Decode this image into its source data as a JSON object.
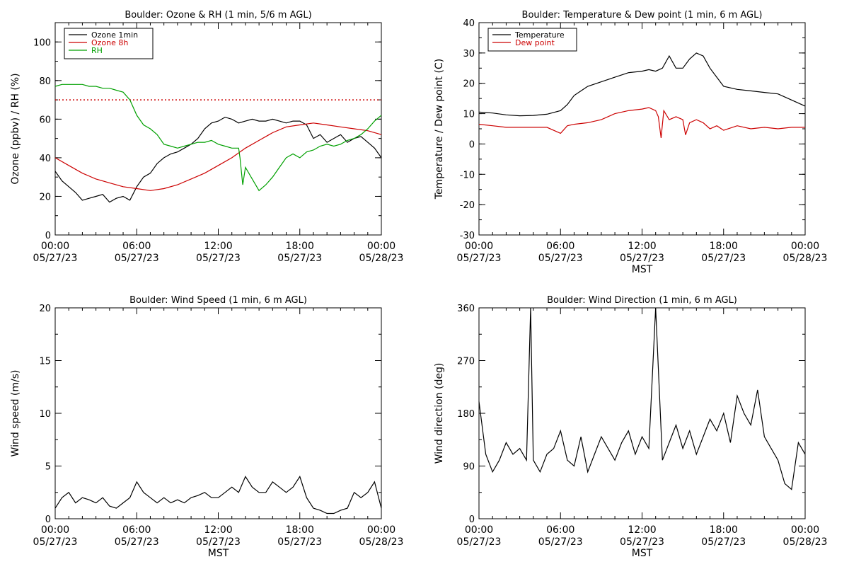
{
  "chart_data": [
    {
      "type": "line",
      "title": "Boulder: Ozone & RH (1 min, 5/6 m AGL)",
      "ylabel": "Ozone (ppbv) / RH (%)",
      "xlabel": "",
      "ylim": [
        0,
        110
      ],
      "yticks": [
        0,
        20,
        40,
        60,
        80,
        100
      ],
      "x_tick_labels": [
        [
          "00:00",
          "05/27/23"
        ],
        [
          "06:00",
          "05/27/23"
        ],
        [
          "12:00",
          "05/27/23"
        ],
        [
          "18:00",
          "05/27/23"
        ],
        [
          "00:00",
          "05/28/23"
        ]
      ],
      "legend": "top-left",
      "grid": false,
      "reference_line": {
        "y": 70,
        "color": "#cc0000",
        "style": "dotted"
      },
      "series": [
        {
          "name": "Ozone 1min",
          "color": "#000000",
          "x": [
            0,
            0.5,
            1,
            1.5,
            2,
            2.5,
            3,
            3.5,
            4,
            4.5,
            5,
            5.5,
            6,
            6.5,
            7,
            7.5,
            8,
            8.5,
            9,
            9.5,
            10,
            10.5,
            11,
            11.5,
            12,
            12.5,
            13,
            13.5,
            14,
            14.5,
            15,
            15.5,
            16,
            16.5,
            17,
            17.5,
            18,
            18.5,
            19,
            19.5,
            20,
            20.5,
            21,
            21.5,
            22,
            22.5,
            23,
            23.5,
            24
          ],
          "values": [
            33,
            28,
            25,
            22,
            18,
            19,
            20,
            21,
            17,
            19,
            20,
            18,
            25,
            30,
            32,
            37,
            40,
            42,
            43,
            45,
            47,
            50,
            55,
            58,
            59,
            61,
            60,
            58,
            59,
            60,
            59,
            59,
            60,
            59,
            58,
            59,
            59,
            57,
            50,
            52,
            48,
            50,
            52,
            48,
            50,
            51,
            48,
            45,
            40
          ]
        },
        {
          "name": "Ozone 8h",
          "color": "#cc0000",
          "x": [
            0,
            1,
            2,
            3,
            4,
            5,
            6,
            7,
            8,
            9,
            10,
            11,
            12,
            13,
            14,
            15,
            16,
            17,
            18,
            19,
            20,
            21,
            22,
            23,
            24
          ],
          "values": [
            40,
            36,
            32,
            29,
            27,
            25,
            24,
            23,
            24,
            26,
            29,
            32,
            36,
            40,
            45,
            49,
            53,
            56,
            57,
            58,
            57,
            56,
            55,
            54,
            52
          ]
        },
        {
          "name": "RH",
          "color": "#00a000",
          "x": [
            0,
            0.5,
            1,
            1.5,
            2,
            2.5,
            3,
            3.5,
            4,
            4.5,
            5,
            5.5,
            6,
            6.5,
            7,
            7.5,
            8,
            8.5,
            9,
            9.5,
            10,
            10.5,
            11,
            11.5,
            12,
            12.5,
            13,
            13.5,
            13.6,
            13.8,
            14,
            14.5,
            15,
            15.5,
            16,
            16.5,
            17,
            17.5,
            18,
            18.5,
            19,
            19.5,
            20,
            20.5,
            21,
            21.5,
            22,
            22.5,
            23,
            23.5,
            24
          ],
          "values": [
            77,
            78,
            78,
            78,
            78,
            77,
            77,
            76,
            76,
            75,
            74,
            70,
            62,
            57,
            55,
            52,
            47,
            46,
            45,
            46,
            47,
            48,
            48,
            49,
            47,
            46,
            45,
            45,
            40,
            26,
            35,
            29,
            23,
            26,
            30,
            35,
            40,
            42,
            40,
            43,
            44,
            46,
            47,
            46,
            47,
            49,
            50,
            52,
            55,
            59,
            62
          ]
        }
      ]
    },
    {
      "type": "line",
      "title": "Boulder: Temperature & Dew point (1 min, 6 m AGL)",
      "ylabel": "Temperature / Dew point (C)",
      "xlabel": "MST",
      "ylim": [
        -30,
        40
      ],
      "yticks": [
        -30,
        -20,
        -10,
        0,
        10,
        20,
        30,
        40
      ],
      "x_tick_labels": [
        [
          "00:00",
          "05/27/23"
        ],
        [
          "06:00",
          "05/27/23"
        ],
        [
          "12:00",
          "05/27/23"
        ],
        [
          "18:00",
          "05/27/23"
        ],
        [
          "00:00",
          "05/28/23"
        ]
      ],
      "legend": "top-left",
      "grid": false,
      "series": [
        {
          "name": "Temperature",
          "color": "#000000",
          "x": [
            0,
            1,
            2,
            3,
            4,
            5,
            6,
            6.5,
            7,
            8,
            9,
            10,
            11,
            12,
            12.5,
            13,
            13.5,
            14,
            14.5,
            15,
            15.5,
            16,
            16.5,
            17,
            17.5,
            18,
            19,
            20,
            21,
            22,
            23,
            24
          ],
          "values": [
            10.5,
            10.2,
            9.6,
            9.3,
            9.4,
            9.8,
            11,
            13,
            16,
            19,
            20.5,
            22,
            23.5,
            24,
            24.5,
            24,
            25,
            29,
            25,
            25,
            28,
            30,
            29,
            25,
            22,
            19,
            18,
            17.5,
            17,
            16.5,
            14.5,
            12.5
          ]
        },
        {
          "name": "Dew point",
          "color": "#cc0000",
          "x": [
            0,
            1,
            2,
            3,
            4,
            5,
            6,
            6.5,
            7,
            8,
            9,
            10,
            11,
            12,
            12.5,
            13,
            13.2,
            13.4,
            13.6,
            14,
            14.5,
            15,
            15.2,
            15.5,
            16,
            16.5,
            17,
            17.5,
            18,
            19,
            20,
            21,
            22,
            23,
            24
          ],
          "values": [
            6.5,
            6,
            5.5,
            5.5,
            5.5,
            5.5,
            3.5,
            6,
            6.5,
            7,
            8,
            10,
            11,
            11.5,
            12,
            11,
            9,
            2,
            11,
            8,
            9,
            8,
            3,
            7,
            8,
            7,
            5,
            6,
            4.5,
            6,
            5,
            5.5,
            5,
            5.5,
            5.5
          ]
        }
      ]
    },
    {
      "type": "line",
      "title": "Boulder: Wind Speed (1 min, 6 m AGL)",
      "ylabel": "Wind speed (m/s)",
      "xlabel": "MST",
      "ylim": [
        0,
        20
      ],
      "yticks": [
        0,
        5,
        10,
        15,
        20
      ],
      "x_tick_labels": [
        [
          "00:00",
          "05/27/23"
        ],
        [
          "06:00",
          "05/27/23"
        ],
        [
          "12:00",
          "05/27/23"
        ],
        [
          "18:00",
          "05/27/23"
        ],
        [
          "00:00",
          "05/28/23"
        ]
      ],
      "grid": false,
      "series": [
        {
          "name": "",
          "color": "#000000",
          "x": [
            0,
            0.5,
            1,
            1.5,
            2,
            2.5,
            3,
            3.5,
            4,
            4.5,
            5,
            5.5,
            6,
            6.5,
            7,
            7.5,
            8,
            8.5,
            9,
            9.5,
            10,
            10.5,
            11,
            11.5,
            12,
            12.5,
            13,
            13.5,
            14,
            14.5,
            15,
            15.5,
            16,
            16.5,
            17,
            17.5,
            18,
            18.5,
            19,
            19.5,
            20,
            20.5,
            21,
            21.5,
            22,
            22.5,
            23,
            23.5,
            24
          ],
          "values": [
            1,
            2,
            2.5,
            1.5,
            2,
            1.8,
            1.5,
            2,
            1.2,
            1,
            1.5,
            2,
            3.5,
            2.5,
            2,
            1.5,
            2,
            1.5,
            1.8,
            1.5,
            2,
            2.2,
            2.5,
            2,
            2,
            2.5,
            3,
            2.5,
            4,
            3,
            2.5,
            2.5,
            3.5,
            3,
            2.5,
            3,
            4,
            2,
            1,
            0.8,
            0.5,
            0.5,
            0.8,
            1,
            2.5,
            2,
            2.5,
            3.5,
            1
          ]
        }
      ]
    },
    {
      "type": "line",
      "title": "Boulder: Wind Direction (1 min, 6 m AGL)",
      "ylabel": "Wind direction (deg)",
      "xlabel": "MST",
      "ylim": [
        0,
        360
      ],
      "yticks": [
        0,
        90,
        180,
        270,
        360
      ],
      "x_tick_labels": [
        [
          "00:00",
          "05/27/23"
        ],
        [
          "06:00",
          "05/27/23"
        ],
        [
          "12:00",
          "05/27/23"
        ],
        [
          "18:00",
          "05/27/23"
        ],
        [
          "00:00",
          "05/28/23"
        ]
      ],
      "grid": false,
      "series": [
        {
          "name": "",
          "color": "#000000",
          "x": [
            0,
            0.5,
            1,
            1.5,
            2,
            2.5,
            3,
            3.5,
            3.8,
            4,
            4.5,
            5,
            5.5,
            6,
            6.5,
            7,
            7.5,
            8,
            8.5,
            9,
            9.5,
            10,
            10.5,
            11,
            11.5,
            12,
            12.5,
            13,
            13.5,
            14,
            14.5,
            15,
            15.5,
            16,
            16.5,
            17,
            17.5,
            18,
            18.5,
            19,
            19.5,
            20,
            20.5,
            21,
            21.5,
            22,
            22.5,
            23,
            23.5,
            24
          ],
          "values": [
            200,
            110,
            80,
            100,
            130,
            110,
            120,
            100,
            360,
            100,
            80,
            110,
            120,
            150,
            100,
            90,
            140,
            80,
            110,
            140,
            120,
            100,
            130,
            150,
            110,
            140,
            120,
            360,
            100,
            130,
            160,
            120,
            150,
            110,
            140,
            170,
            150,
            180,
            130,
            210,
            180,
            160,
            220,
            140,
            120,
            100,
            60,
            50,
            130,
            110
          ]
        }
      ]
    }
  ]
}
